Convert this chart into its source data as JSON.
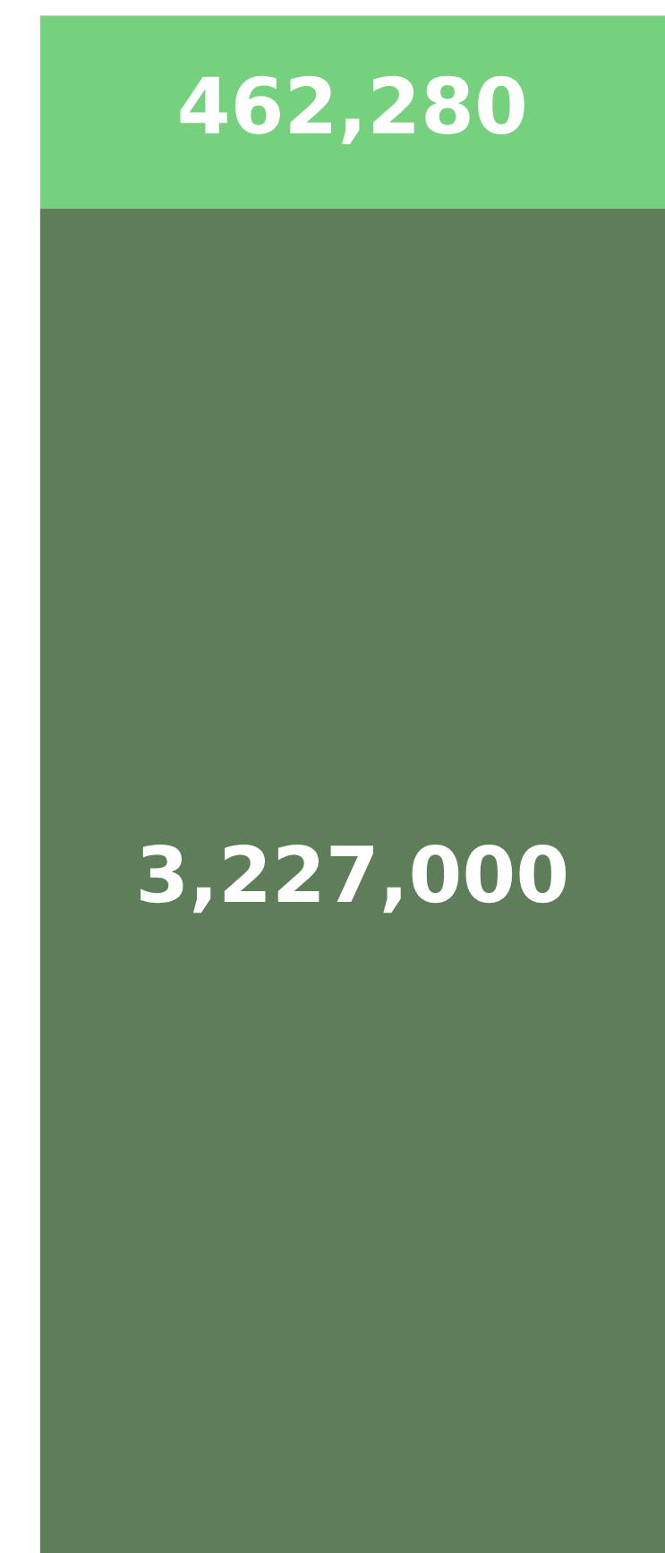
{
  "chart_data": {
    "type": "bar",
    "stacked": true,
    "categories": [
      null
    ],
    "grid": false,
    "series": [
      {
        "color": "#5e7e5a",
        "values": [
          3227000
        ],
        "value_labels": [
          "3,227,000"
        ]
      },
      {
        "color": "#76d17e",
        "values": [
          462280
        ],
        "value_labels": [
          "462,280"
        ]
      }
    ]
  }
}
